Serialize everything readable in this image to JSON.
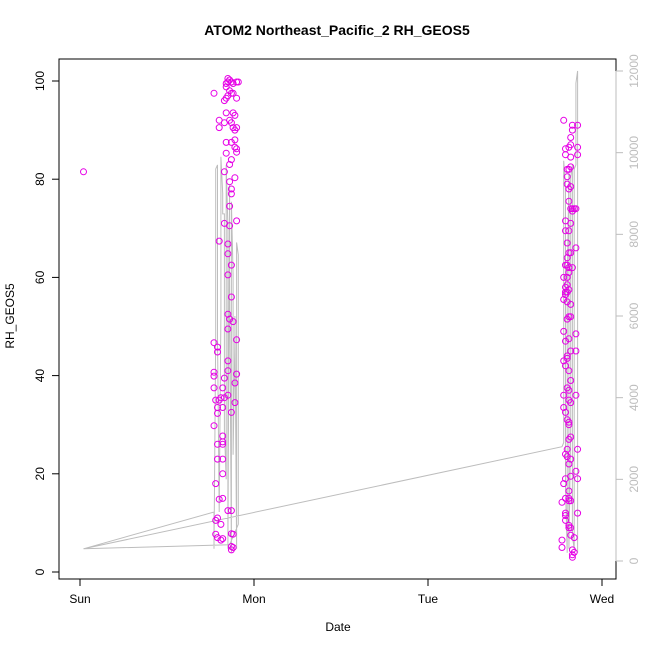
{
  "chart_data": {
    "type": "scatter",
    "title": "ATOM2 Northeast_Pacific_2 RH_GEOS5",
    "xlabel": "Date",
    "ylabel": "RH_GEOS5",
    "x_ticks": [
      "Sun",
      "Mon",
      "Tue",
      "Wed"
    ],
    "y_ticks": [
      0,
      20,
      40,
      60,
      80,
      100
    ],
    "ylim": [
      0,
      100
    ],
    "y2_ticks": [
      0,
      2000,
      4000,
      6000,
      8000,
      10000,
      12000
    ],
    "y2lim": [
      0,
      12000
    ],
    "xlim_days": [
      0,
      3
    ],
    "colors": {
      "points": "#e600e6",
      "line": "#bdbdbd",
      "axis": "#000000",
      "axis_right": "#bdbdbd"
    },
    "series": [
      {
        "kind": "points",
        "points": [
          [
            0.02,
            81.5
          ],
          [
            0.77,
            97.5
          ],
          [
            0.77,
            46.7
          ],
          [
            0.77,
            40.7
          ],
          [
            0.77,
            39.9
          ],
          [
            0.77,
            37.5
          ],
          [
            0.78,
            35.0
          ],
          [
            0.77,
            29.8
          ],
          [
            0.78,
            18.0
          ],
          [
            0.78,
            10.5
          ],
          [
            0.78,
            7.7
          ],
          [
            0.79,
            33.5
          ],
          [
            0.79,
            32.3
          ],
          [
            0.79,
            45.8
          ],
          [
            0.79,
            44.8
          ],
          [
            0.79,
            26.0
          ],
          [
            0.79,
            23.0
          ],
          [
            0.79,
            11.0
          ],
          [
            0.79,
            7.0
          ],
          [
            0.8,
            92.0
          ],
          [
            0.8,
            90.5
          ],
          [
            0.8,
            67.4
          ],
          [
            0.8,
            35.0
          ],
          [
            0.8,
            14.8
          ],
          [
            0.81,
            6.5
          ],
          [
            0.81,
            35.5
          ],
          [
            0.81,
            9.7
          ],
          [
            0.82,
            15.0
          ],
          [
            0.82,
            20.0
          ],
          [
            0.82,
            23.0
          ],
          [
            0.82,
            26.0
          ],
          [
            0.82,
            26.5
          ],
          [
            0.82,
            27.7
          ],
          [
            0.82,
            33.5
          ],
          [
            0.82,
            37.5
          ],
          [
            0.82,
            6.8
          ],
          [
            0.83,
            96.0
          ],
          [
            0.83,
            91.5
          ],
          [
            0.83,
            81.5
          ],
          [
            0.83,
            71.0
          ],
          [
            0.83,
            39.5
          ],
          [
            0.83,
            35.5
          ],
          [
            0.84,
            99.5
          ],
          [
            0.84,
            98.8
          ],
          [
            0.84,
            96.5
          ],
          [
            0.84,
            93.5
          ],
          [
            0.84,
            87.5
          ],
          [
            0.84,
            85.3
          ],
          [
            0.85,
            100.5
          ],
          [
            0.85,
            99.8
          ],
          [
            0.85,
            97.0
          ],
          [
            0.85,
            66.8
          ],
          [
            0.85,
            64.8
          ],
          [
            0.85,
            60.5
          ],
          [
            0.85,
            52.5
          ],
          [
            0.85,
            49.5
          ],
          [
            0.85,
            43.0
          ],
          [
            0.85,
            41.0
          ],
          [
            0.85,
            36.0
          ],
          [
            0.85,
            12.5
          ],
          [
            0.86,
            100.2
          ],
          [
            0.86,
            98.0
          ],
          [
            0.86,
            92.0
          ],
          [
            0.86,
            83.0
          ],
          [
            0.86,
            79.5
          ],
          [
            0.86,
            74.5
          ],
          [
            0.86,
            70.5
          ],
          [
            0.86,
            51.5
          ],
          [
            0.87,
            99.8
          ],
          [
            0.87,
            97.5
          ],
          [
            0.87,
            91.5
          ],
          [
            0.87,
            87.5
          ],
          [
            0.87,
            84.0
          ],
          [
            0.87,
            78.0
          ],
          [
            0.87,
            77.0
          ],
          [
            0.87,
            62.5
          ],
          [
            0.87,
            56.0
          ],
          [
            0.87,
            32.5
          ],
          [
            0.87,
            12.5
          ],
          [
            0.87,
            7.8
          ],
          [
            0.87,
            5.2
          ],
          [
            0.87,
            4.5
          ],
          [
            0.88,
            99.5
          ],
          [
            0.88,
            97.5
          ],
          [
            0.88,
            93.5
          ],
          [
            0.88,
            90.5
          ],
          [
            0.88,
            51.0
          ],
          [
            0.88,
            7.7
          ],
          [
            0.88,
            5.0
          ],
          [
            0.89,
            93.0
          ],
          [
            0.89,
            90.0
          ],
          [
            0.89,
            88.0
          ],
          [
            0.89,
            86.5
          ],
          [
            0.89,
            80.3
          ],
          [
            0.89,
            38.5
          ],
          [
            0.89,
            34.5
          ],
          [
            0.9,
            99.8
          ],
          [
            0.9,
            96.5
          ],
          [
            0.9,
            90.5
          ],
          [
            0.9,
            86.2
          ],
          [
            0.9,
            85.5
          ],
          [
            0.9,
            71.5
          ],
          [
            0.9,
            47.3
          ],
          [
            0.9,
            40.3
          ],
          [
            0.91,
            99.8
          ],
          [
            2.78,
            92.0
          ],
          [
            2.79,
            86.2
          ],
          [
            2.79,
            85.0
          ],
          [
            2.78,
            60.0
          ],
          [
            2.78,
            55.5
          ],
          [
            2.78,
            49.0
          ],
          [
            2.78,
            43.0
          ],
          [
            2.78,
            36.0
          ],
          [
            2.78,
            33.5
          ],
          [
            2.78,
            18.0
          ],
          [
            2.77,
            14.2
          ],
          [
            2.77,
            6.5
          ],
          [
            2.77,
            5.0
          ],
          [
            2.79,
            71.5
          ],
          [
            2.79,
            69.5
          ],
          [
            2.79,
            62.5
          ],
          [
            2.79,
            58.0
          ],
          [
            2.79,
            57.0
          ],
          [
            2.79,
            56.5
          ],
          [
            2.79,
            47.0
          ],
          [
            2.79,
            42.0
          ],
          [
            2.79,
            32.5
          ],
          [
            2.79,
            24.0
          ],
          [
            2.79,
            19.0
          ],
          [
            2.79,
            15.0
          ],
          [
            2.79,
            12.0
          ],
          [
            2.79,
            11.5
          ],
          [
            2.79,
            10.5
          ],
          [
            2.8,
            82.0
          ],
          [
            2.8,
            80.5
          ],
          [
            2.8,
            79.0
          ],
          [
            2.8,
            67.0
          ],
          [
            2.8,
            64.0
          ],
          [
            2.8,
            62.5
          ],
          [
            2.8,
            60.0
          ],
          [
            2.8,
            58.5
          ],
          [
            2.8,
            57.0
          ],
          [
            2.8,
            55.0
          ],
          [
            2.8,
            51.5
          ],
          [
            2.8,
            44.0
          ],
          [
            2.8,
            43.5
          ],
          [
            2.8,
            37.5
          ],
          [
            2.8,
            31.0
          ],
          [
            2.8,
            25.0
          ],
          [
            2.8,
            23.5
          ],
          [
            2.81,
            86.5
          ],
          [
            2.81,
            82.0
          ],
          [
            2.81,
            78.0
          ],
          [
            2.81,
            75.5
          ],
          [
            2.81,
            69.5
          ],
          [
            2.81,
            65.0
          ],
          [
            2.81,
            62.0
          ],
          [
            2.81,
            61.0
          ],
          [
            2.81,
            57.5
          ],
          [
            2.81,
            52.0
          ],
          [
            2.81,
            47.5
          ],
          [
            2.81,
            41.0
          ],
          [
            2.81,
            37.0
          ],
          [
            2.81,
            35.0
          ],
          [
            2.81,
            30.5
          ],
          [
            2.81,
            30.0
          ],
          [
            2.81,
            27.0
          ],
          [
            2.81,
            22.0
          ],
          [
            2.81,
            16.5
          ],
          [
            2.81,
            15.0
          ],
          [
            2.81,
            14.5
          ],
          [
            2.81,
            9.0
          ],
          [
            2.81,
            9.5
          ],
          [
            2.82,
            88.5
          ],
          [
            2.82,
            87.0
          ],
          [
            2.82,
            84.5
          ],
          [
            2.82,
            82.5
          ],
          [
            2.82,
            78.5
          ],
          [
            2.82,
            74.0
          ],
          [
            2.82,
            71.0
          ],
          [
            2.82,
            65.0
          ],
          [
            2.82,
            54.5
          ],
          [
            2.82,
            52.0
          ],
          [
            2.82,
            45.0
          ],
          [
            2.82,
            39.0
          ],
          [
            2.82,
            34.5
          ],
          [
            2.82,
            27.5
          ],
          [
            2.82,
            23.0
          ],
          [
            2.82,
            19.5
          ],
          [
            2.82,
            14.5
          ],
          [
            2.82,
            9.0
          ],
          [
            2.82,
            7.5
          ],
          [
            2.83,
            91.0
          ],
          [
            2.83,
            90.0
          ],
          [
            2.83,
            74.0
          ],
          [
            2.83,
            73.5
          ],
          [
            2.83,
            62.0
          ],
          [
            2.83,
            4.5
          ],
          [
            2.83,
            3.5
          ],
          [
            2.83,
            3.0
          ],
          [
            2.84,
            74.0
          ],
          [
            2.84,
            7.0
          ],
          [
            2.84,
            4.0
          ],
          [
            2.85,
            74.0
          ],
          [
            2.85,
            66.0
          ],
          [
            2.85,
            48.5
          ],
          [
            2.85,
            45.0
          ],
          [
            2.85,
            36.0
          ],
          [
            2.85,
            20.5
          ],
          [
            2.86,
            91.0
          ],
          [
            2.86,
            86.5
          ],
          [
            2.86,
            85.0
          ],
          [
            2.86,
            25.0
          ],
          [
            2.86,
            19.0
          ],
          [
            2.86,
            12.0
          ]
        ]
      },
      {
        "kind": "line",
        "axis": "right",
        "points": [
          [
            0.02,
            300
          ],
          [
            0.77,
            1200
          ],
          [
            0.77,
            300
          ],
          [
            0.78,
            5500
          ],
          [
            0.78,
            9600
          ],
          [
            0.79,
            9700
          ],
          [
            0.79,
            5500
          ],
          [
            0.8,
            1200
          ],
          [
            0.81,
            6000
          ],
          [
            0.81,
            9900
          ],
          [
            0.82,
            9000
          ],
          [
            0.82,
            8500
          ],
          [
            0.83,
            8500
          ],
          [
            0.83,
            3200
          ],
          [
            0.84,
            2000
          ],
          [
            0.84,
            9700
          ],
          [
            0.85,
            8200
          ],
          [
            0.85,
            300
          ],
          [
            0.86,
            9200
          ],
          [
            0.86,
            6800
          ],
          [
            0.87,
            200
          ],
          [
            0.87,
            8800
          ],
          [
            0.88,
            7000
          ],
          [
            0.88,
            2600
          ],
          [
            0.89,
            5400
          ],
          [
            0.89,
            6000
          ],
          [
            0.9,
            300
          ],
          [
            0.9,
            7800
          ],
          [
            0.91,
            7500
          ],
          [
            0.91,
            900
          ],
          [
            0.86,
            400
          ],
          [
            0.02,
            300
          ],
          [
            2.77,
            2800
          ],
          [
            2.78,
            2900
          ],
          [
            2.78,
            9800
          ],
          [
            2.79,
            9200
          ],
          [
            2.79,
            1800
          ],
          [
            2.8,
            200
          ],
          [
            2.8,
            2400
          ],
          [
            2.8,
            6700
          ],
          [
            2.81,
            9500
          ],
          [
            2.81,
            300
          ],
          [
            2.82,
            3200
          ],
          [
            2.82,
            9400
          ],
          [
            2.83,
            9700
          ],
          [
            2.83,
            4500
          ],
          [
            2.83,
            600
          ],
          [
            2.84,
            300
          ],
          [
            2.84,
            9600
          ],
          [
            2.85,
            9700
          ],
          [
            2.85,
            11700
          ],
          [
            2.86,
            12000
          ],
          [
            2.86,
            5000
          ],
          [
            2.86,
            200
          ],
          [
            2.86,
            300
          ]
        ]
      }
    ]
  }
}
